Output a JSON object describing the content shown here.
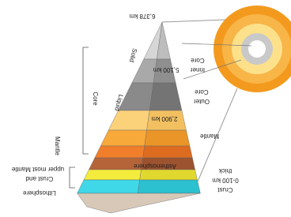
{
  "diagram": {
    "pyramid_labels": {
      "radius": "6,378 km",
      "solid": "Solid",
      "depth_inner": "5,100 km",
      "liquid": "Liquid",
      "depth_outer": "2,900 km",
      "asthenosphere": "Asthenosphere"
    },
    "side_labels": {
      "core": "Core",
      "mantle": "Mantle",
      "lithosphere": "Lithosphere",
      "lithosphere_note_1": "Crust and",
      "lithosphere_note_2": "upper most Mantle"
    },
    "circle_labels": {
      "inner_core_1": "Inner",
      "inner_core_2": "Core",
      "outer_core_1": "Outer",
      "outer_core_2": "Core",
      "mantle": "Mantle",
      "crust_1": "Crust",
      "crust_2": "0-100 km",
      "crust_3": "thick"
    }
  }
}
